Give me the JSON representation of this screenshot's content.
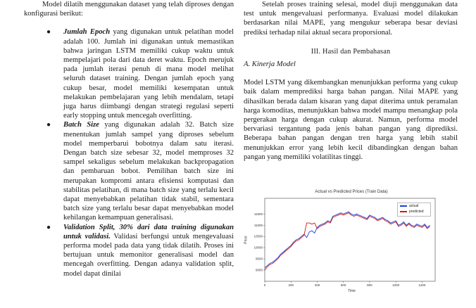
{
  "left_column": {
    "intro": "Model dilatih menggunakan dataset yang telah diproses dengan konfigurasi berikut:",
    "bullets": [
      {
        "lead": "Jumlah Epoch",
        "text": " yang digunakan untuk pelatihan model adalah 100. Jumlah ini digunakan untuk memastikan bahwa jaringan LSTM memiliki cukup waktu untuk mempelajari pola dari data deret waktu. Epoch merujuk pada jumlah iterasi penuh di mana model melihat seluruh dataset training. Dengan jumlah epoch yang cukup besar, model memiliki kesempatan untuk melakukan pembelajaran yang lebih mendalam, tetapi juga harus diimbangi dengan strategi regulasi seperti early stopping untuk mencegah overfitting."
      },
      {
        "lead": "Batch Size",
        "text": " yang digunakan adalah 32. Batch size menentukan jumlah sampel yang diproses sebelum model memperbarui bobotnya dalam satu iterasi. Dengan batch size sebesar 32, model memproses 32 sampel sekaligus sebelum melakukan backpropagation dan pembaruan bobot. Pemilihan batch size ini merupakan kompromi antara efisiensi komputasi dan stabilitas pelatihan, di mana batch size yang terlalu kecil dapat menyebabkan pelatihan tidak stabil, sementara batch size yang terlalu besar dapat menyebabkan model kehilangan kemampuan generalisasi."
      },
      {
        "lead": "Validation Split, 30% dari data training digunakan untuk validasi.",
        "text": " Validasi berfungsi untuk mengevaluasi performa model pada data yang tidak dilatih. Proses ini bertujuan untuk memonitor generalisasi model dan mencegah overfitting. Dengan adanya validation split, model dapat dinilai"
      }
    ]
  },
  "right_column": {
    "p1": "Setelah proses training selesai, model diuji menggunakan data test untuk mengevaluasi performanya. Evaluasi model dilakukan berdasarkan nilai MAPE, yang mengukur seberapa besar deviasi prediksi terhadap nilai aktual secara proporsional.",
    "section_heading": "III. Hasil dan Pembahasan",
    "subsection": "A.   Kinerja Model",
    "p2": "Model LSTM yang dikembangkan menunjukkan performa yang cukup baik dalam memprediksi harga bahan pangan. Nilai MAPE yang dihasilkan berada dalam kisaran yang dapat diterima untuk peramalan harga komoditas, menunjukkan bahwa model mampu menangkap pola pergerakan harga dengan cukup akurat. Namun, performa model bervariasi tergantung pada jenis bahan pangan yang diprediksi. Beberapa bahan pangan dengan tren harga yang lebih stabil menunjukkan error yang lebih kecil dibandingkan dengan bahan pangan yang memiliki volatilitas tinggi."
  },
  "colors": {
    "actual": "#1f3fd6",
    "predicted": "#d01818"
  },
  "chart_data": {
    "type": "line",
    "title": "Actual vs Predicted Prices (Train Data)",
    "xlabel": "Time",
    "ylabel": "Price",
    "xlim": [
      0,
      1300
    ],
    "ylim": [
      8500,
      12200
    ],
    "x_ticks": [
      0,
      200,
      400,
      600,
      800,
      1000,
      1200
    ],
    "y_ticks": [
      9000,
      9500,
      10000,
      10500,
      11000,
      11500
    ],
    "legend_position": "top-right",
    "series": [
      {
        "name": "actual",
        "x": [
          0,
          20,
          40,
          60,
          80,
          100,
          120,
          140,
          160,
          180,
          200,
          220,
          240,
          260,
          280,
          300,
          320,
          340,
          360,
          380,
          400,
          420,
          440,
          460,
          480,
          500,
          520,
          540,
          560,
          580,
          600,
          620,
          640,
          660,
          680,
          700,
          720,
          740,
          760,
          780,
          800,
          820,
          840,
          860,
          880,
          900,
          920,
          940,
          960,
          980,
          1000,
          1020,
          1040,
          1060,
          1080,
          1100,
          1120,
          1140,
          1160,
          1180,
          1200,
          1220,
          1240,
          1260
        ],
        "values": [
          9100,
          9200,
          9300,
          9350,
          9450,
          9550,
          9700,
          9800,
          9900,
          10000,
          10100,
          10250,
          10350,
          10400,
          10500,
          10600,
          10450,
          10700,
          10750,
          10650,
          10900,
          11000,
          11050,
          11100,
          11200,
          11150,
          11400,
          11450,
          11500,
          11550,
          11500,
          11550,
          11600,
          11500,
          11450,
          11500,
          11450,
          11400,
          11350,
          11300,
          11450,
          11400,
          11350,
          11250,
          11300,
          11350,
          11250,
          11200,
          11100,
          11150,
          11200,
          11000,
          11050,
          11150,
          11000,
          11100,
          11000,
          10950,
          11050,
          11000,
          10950,
          11050,
          10900,
          11000
        ]
      },
      {
        "name": "predicted",
        "x": [
          0,
          20,
          40,
          60,
          80,
          100,
          120,
          140,
          160,
          180,
          200,
          220,
          240,
          260,
          280,
          300,
          320,
          340,
          360,
          380,
          400,
          420,
          440,
          460,
          480,
          500,
          520,
          540,
          560,
          580,
          600,
          620,
          640,
          660,
          680,
          700,
          720,
          740,
          760,
          780,
          800,
          820,
          840,
          860,
          880,
          900,
          920,
          940,
          960,
          980,
          1000,
          1020,
          1040,
          1060,
          1080,
          1100,
          1120,
          1140,
          1160,
          1180,
          1200,
          1220,
          1240,
          1260
        ],
        "values": [
          9000,
          9150,
          9250,
          9300,
          9400,
          9500,
          9650,
          9750,
          9850,
          9950,
          10050,
          10200,
          10300,
          10350,
          10450,
          10550,
          11100,
          11100,
          11050,
          11100,
          10850,
          10950,
          11000,
          11050,
          11150,
          11100,
          11350,
          11400,
          11450,
          11500,
          11450,
          11500,
          11550,
          11450,
          11400,
          11450,
          11400,
          11350,
          11300,
          11250,
          11400,
          11350,
          11300,
          11200,
          11250,
          11300,
          11200,
          11150,
          11050,
          11100,
          11150,
          10950,
          11000,
          11100,
          10950,
          11050,
          10950,
          10900,
          11000,
          10950,
          10900,
          11000,
          10850,
          10950
        ]
      }
    ]
  }
}
